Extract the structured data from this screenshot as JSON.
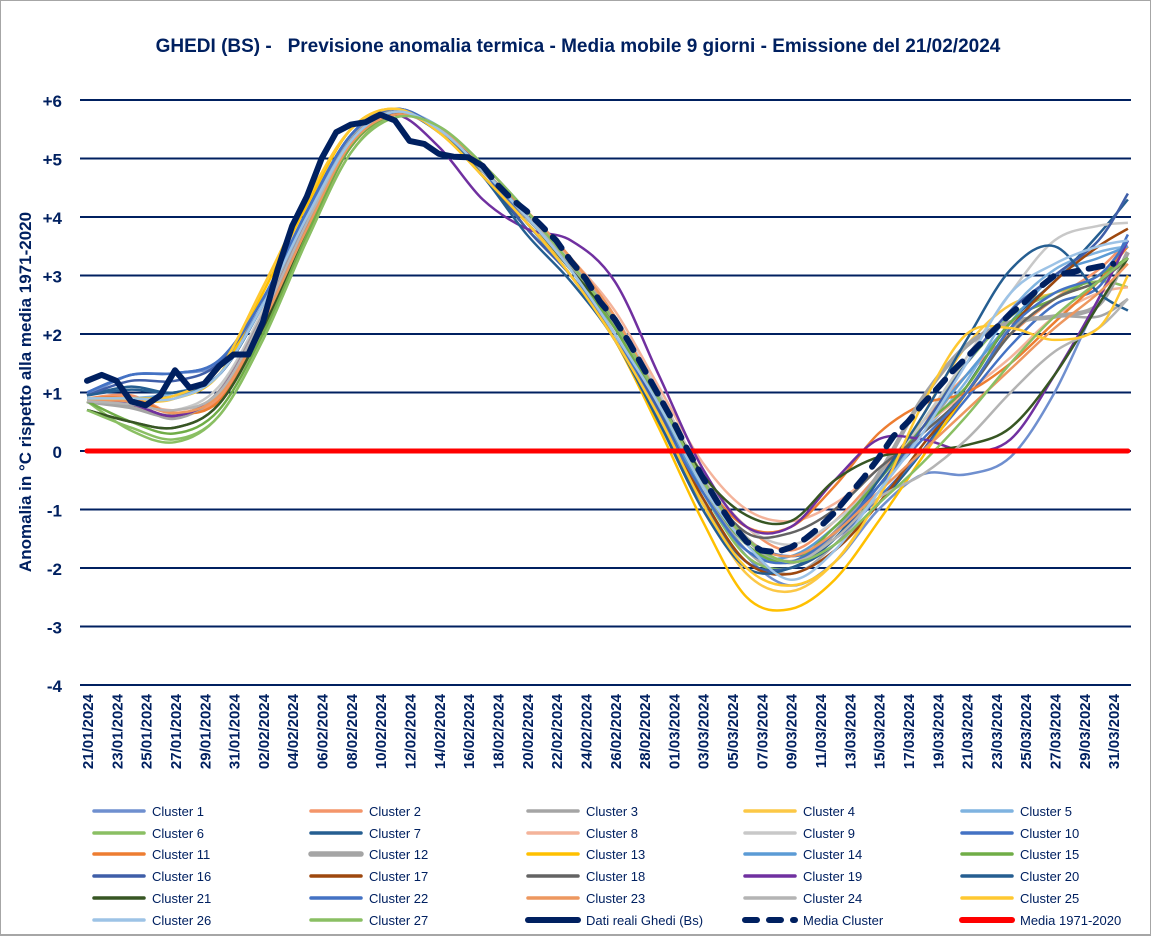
{
  "chart_data": {
    "type": "line",
    "title": "GHEDI (BS) -   Previsione anomalia termica - Media mobile 9 giorni - Emissione del 21/02/2024",
    "xlabel": "",
    "ylabel": "Anomalia in °C rispetto alla media 1971-2020",
    "ylim": [
      -4,
      6
    ],
    "y_ticks": [
      {
        "value": 6,
        "label": "+6"
      },
      {
        "value": 5,
        "label": "+5"
      },
      {
        "value": 4,
        "label": "+4"
      },
      {
        "value": 3,
        "label": "+3"
      },
      {
        "value": 2,
        "label": "+2"
      },
      {
        "value": 1,
        "label": "+1"
      },
      {
        "value": 0,
        "label": "0"
      },
      {
        "value": -1,
        "label": "-1"
      },
      {
        "value": -2,
        "label": "-2"
      },
      {
        "value": -3,
        "label": "-3"
      },
      {
        "value": -4,
        "label": "-4"
      }
    ],
    "x_unit": "days since 21/01/2024",
    "xlim": [
      0,
      71
    ],
    "x_ticks": [
      "21/01/2024",
      "23/01/2024",
      "25/01/2024",
      "27/01/2024",
      "29/01/2024",
      "31/01/2024",
      "02/02/2024",
      "04/02/2024",
      "06/02/2024",
      "08/02/2024",
      "10/02/2024",
      "12/02/2024",
      "14/02/2024",
      "16/02/2024",
      "18/02/2024",
      "20/02/2024",
      "22/02/2024",
      "24/02/2024",
      "26/02/2024",
      "28/02/2024",
      "01/03/2024",
      "03/03/2024",
      "05/03/2024",
      "07/03/2024",
      "09/03/2024",
      "11/03/2024",
      "13/03/2024",
      "15/03/2024",
      "17/03/2024",
      "19/03/2024",
      "21/03/2024",
      "23/03/2024",
      "25/03/2024",
      "27/03/2024",
      "29/03/2024",
      "31/03/2024"
    ],
    "grid": true,
    "legend_position": "bottom",
    "cluster_x": [
      0,
      3,
      6,
      9,
      12,
      15,
      18,
      21,
      24,
      27,
      30,
      33,
      36,
      39,
      42,
      45,
      48,
      51,
      54,
      57,
      60,
      63,
      66,
      69,
      71
    ],
    "series": [
      {
        "name": "Cluster 1",
        "color": "#6f8fcf",
        "width": 2.5,
        "values": [
          0.95,
          1.3,
          1.33,
          1.5,
          2.5,
          4.0,
          5.4,
          5.85,
          5.5,
          4.7,
          3.9,
          3.1,
          2.1,
          0.8,
          -0.7,
          -1.8,
          -2.3,
          -1.9,
          -1.0,
          -0.4,
          -0.4,
          -0.1,
          1.0,
          2.6,
          3.6
        ]
      },
      {
        "name": "Cluster 2",
        "color": "#f4956a",
        "width": 2.5,
        "values": [
          0.9,
          0.95,
          0.65,
          0.9,
          2.2,
          3.8,
          5.2,
          5.75,
          5.5,
          4.8,
          4.1,
          3.3,
          2.3,
          1.0,
          -0.4,
          -1.3,
          -1.7,
          -1.2,
          -0.4,
          0.5,
          1.3,
          2.0,
          2.6,
          3.1,
          3.6
        ]
      },
      {
        "name": "Cluster 3",
        "color": "#a5a5a5",
        "width": 2.5,
        "values": [
          0.85,
          0.8,
          0.55,
          1.0,
          2.3,
          3.9,
          5.3,
          5.8,
          5.5,
          4.8,
          4.0,
          3.2,
          2.1,
          0.8,
          -0.6,
          -1.7,
          -2.1,
          -1.6,
          -0.7,
          0.3,
          1.3,
          2.1,
          2.3,
          2.3,
          2.6
        ]
      },
      {
        "name": "Cluster 4",
        "color": "#fcc846",
        "width": 2.5,
        "values": [
          0.9,
          0.85,
          0.9,
          1.4,
          2.8,
          4.3,
          5.5,
          5.85,
          5.45,
          4.7,
          3.9,
          3.1,
          2.0,
          0.6,
          -0.9,
          -2.1,
          -2.4,
          -1.9,
          -0.8,
          0.6,
          1.8,
          2.5,
          2.7,
          3.0,
          3.5
        ]
      },
      {
        "name": "Cluster 5",
        "color": "#7fb3e0",
        "width": 2.5,
        "values": [
          0.9,
          0.9,
          1.0,
          1.3,
          2.5,
          4.0,
          5.3,
          5.8,
          5.55,
          4.9,
          4.1,
          3.2,
          2.2,
          0.9,
          -0.5,
          -1.6,
          -1.9,
          -1.4,
          -0.6,
          0.3,
          1.2,
          2.4,
          3.1,
          3.4,
          3.5
        ]
      },
      {
        "name": "Cluster 6",
        "color": "#8abf63",
        "width": 2.5,
        "values": [
          0.85,
          0.35,
          0.15,
          0.6,
          1.9,
          3.6,
          5.1,
          5.75,
          5.5,
          4.8,
          4.0,
          3.1,
          2.0,
          0.7,
          -0.7,
          -1.8,
          -2.0,
          -1.5,
          -0.7,
          0.5,
          1.5,
          2.3,
          2.7,
          2.9,
          2.8
        ]
      },
      {
        "name": "Cluster 7",
        "color": "#255e91",
        "width": 2.5,
        "values": [
          0.95,
          1.1,
          1.0,
          1.3,
          2.5,
          4.1,
          5.4,
          5.8,
          5.45,
          4.7,
          3.8,
          3.0,
          1.9,
          0.5,
          -0.9,
          -1.9,
          -2.0,
          -1.6,
          -0.9,
          0.0,
          1.1,
          2.2,
          2.9,
          3.7,
          4.3
        ]
      },
      {
        "name": "Cluster 8",
        "color": "#f4b39a",
        "width": 2.5,
        "values": [
          0.9,
          0.85,
          0.7,
          1.0,
          2.3,
          3.9,
          5.3,
          5.8,
          5.5,
          4.8,
          4.1,
          3.3,
          2.4,
          1.1,
          -0.2,
          -1.0,
          -1.2,
          -0.9,
          -0.3,
          0.4,
          1.0,
          1.6,
          2.3,
          2.7,
          2.8
        ]
      },
      {
        "name": "Cluster 9",
        "color": "#c8c8c8",
        "width": 2.5,
        "values": [
          0.85,
          0.8,
          0.7,
          1.1,
          2.4,
          4.0,
          5.35,
          5.8,
          5.5,
          4.8,
          4.0,
          3.2,
          2.3,
          1.0,
          -0.4,
          -1.3,
          -1.6,
          -1.2,
          -0.5,
          0.5,
          1.6,
          2.7,
          3.6,
          3.85,
          3.9
        ]
      },
      {
        "name": "Cluster 10",
        "color": "#4472c4",
        "width": 2.5,
        "values": [
          1.0,
          1.3,
          1.33,
          1.55,
          2.6,
          4.1,
          5.4,
          5.85,
          5.5,
          4.8,
          3.9,
          3.0,
          2.0,
          0.7,
          -0.6,
          -1.5,
          -1.8,
          -1.5,
          -0.8,
          0.0,
          0.9,
          1.8,
          2.5,
          2.8,
          3.7
        ]
      },
      {
        "name": "Cluster 11",
        "color": "#ed7d31",
        "width": 2.5,
        "values": [
          0.9,
          0.9,
          0.65,
          0.85,
          2.1,
          3.7,
          5.2,
          5.75,
          5.5,
          4.8,
          4.1,
          3.3,
          2.3,
          0.9,
          -0.5,
          -1.3,
          -1.3,
          -0.6,
          0.3,
          0.8,
          1.0,
          1.5,
          2.2,
          2.9,
          3.5
        ]
      },
      {
        "name": "Cluster 12",
        "color": "#a5a5a5",
        "width": 4.5,
        "values": [
          0.85,
          0.75,
          0.6,
          1.0,
          2.3,
          3.9,
          5.3,
          5.8,
          5.5,
          4.8,
          4.0,
          3.2,
          2.2,
          0.9,
          -0.5,
          -1.5,
          -1.9,
          -1.4,
          -0.4,
          0.9,
          1.8,
          2.2,
          2.3,
          2.5,
          3.4
        ]
      },
      {
        "name": "Cluster 13",
        "color": "#ffc000",
        "width": 2.5,
        "values": [
          0.9,
          0.9,
          0.9,
          1.3,
          2.7,
          4.2,
          5.5,
          5.85,
          5.45,
          4.7,
          3.9,
          3.0,
          1.9,
          0.4,
          -1.2,
          -2.5,
          -2.7,
          -2.2,
          -1.2,
          -0.1,
          1.0,
          2.0,
          2.6,
          2.9,
          3.3
        ]
      },
      {
        "name": "Cluster 14",
        "color": "#5b9bd5",
        "width": 2.5,
        "values": [
          0.9,
          0.9,
          0.95,
          1.3,
          2.5,
          4.0,
          5.3,
          5.8,
          5.5,
          4.8,
          4.0,
          3.1,
          2.0,
          0.7,
          -0.7,
          -1.7,
          -1.8,
          -1.3,
          -0.5,
          0.4,
          1.3,
          2.2,
          3.0,
          3.3,
          3.5
        ]
      },
      {
        "name": "Cluster 15",
        "color": "#70ad47",
        "width": 2.5,
        "values": [
          0.85,
          0.5,
          0.3,
          0.7,
          2.0,
          3.7,
          5.2,
          5.75,
          5.5,
          4.8,
          4.0,
          3.1,
          2.1,
          0.8,
          -0.6,
          -1.6,
          -1.9,
          -1.3,
          -0.5,
          0.4,
          1.1,
          2.2,
          2.6,
          3.0,
          3.3
        ]
      },
      {
        "name": "Cluster 16",
        "color": "#3f5ea8",
        "width": 2.5,
        "values": [
          0.95,
          1.2,
          1.2,
          1.5,
          2.6,
          4.1,
          5.4,
          5.85,
          5.5,
          4.8,
          3.8,
          3.0,
          2.0,
          0.7,
          -0.8,
          -1.9,
          -2.0,
          -1.5,
          -0.6,
          0.4,
          1.5,
          2.4,
          3.0,
          3.6,
          4.4
        ]
      },
      {
        "name": "Cluster 17",
        "color": "#9e480e",
        "width": 2.5,
        "values": [
          0.85,
          0.8,
          0.6,
          1.0,
          2.3,
          3.9,
          5.3,
          5.8,
          5.5,
          4.7,
          3.9,
          3.0,
          1.9,
          0.6,
          -0.8,
          -1.9,
          -2.1,
          -1.7,
          -0.9,
          0.1,
          1.0,
          2.1,
          2.9,
          3.5,
          3.8
        ]
      },
      {
        "name": "Cluster 18",
        "color": "#636363",
        "width": 2.5,
        "values": [
          0.7,
          0.5,
          0.4,
          0.8,
          2.1,
          3.8,
          5.3,
          5.75,
          5.5,
          4.8,
          4.0,
          3.1,
          2.2,
          0.9,
          -0.5,
          -1.4,
          -1.4,
          -1.0,
          -0.3,
          0.3,
          1.0,
          2.0,
          2.6,
          2.9,
          3.3
        ]
      },
      {
        "name": "Cluster 19",
        "color": "#7030a0",
        "width": 2.5,
        "values": [
          0.85,
          0.8,
          0.6,
          1.0,
          2.3,
          3.9,
          5.3,
          5.75,
          5.2,
          4.3,
          3.8,
          3.6,
          2.9,
          1.3,
          -0.3,
          -1.3,
          -1.3,
          -0.5,
          0.2,
          0.2,
          0.0,
          0.2,
          1.3,
          2.6,
          3.6
        ]
      },
      {
        "name": "Cluster 20",
        "color": "#255e91",
        "width": 2.5,
        "values": [
          0.95,
          1.05,
          1.0,
          1.3,
          2.5,
          4.0,
          5.3,
          5.8,
          5.5,
          4.7,
          3.7,
          2.9,
          1.9,
          0.5,
          -1.0,
          -2.0,
          -2.0,
          -1.5,
          -0.5,
          0.6,
          1.9,
          3.1,
          3.5,
          2.7,
          2.4
        ]
      },
      {
        "name": "Cluster 21",
        "color": "#375623",
        "width": 2.5,
        "values": [
          0.7,
          0.5,
          0.4,
          0.8,
          2.1,
          3.8,
          5.3,
          5.75,
          5.5,
          4.8,
          4.0,
          3.1,
          2.2,
          0.9,
          -0.4,
          -1.1,
          -1.2,
          -0.5,
          -0.1,
          0.0,
          0.1,
          0.4,
          1.3,
          2.5,
          3.3
        ]
      },
      {
        "name": "Cluster 22",
        "color": "#4472c4",
        "width": 2.5,
        "values": [
          1.0,
          1.3,
          1.33,
          1.55,
          2.6,
          4.1,
          5.4,
          5.85,
          5.5,
          4.8,
          3.9,
          3.0,
          2.0,
          0.6,
          -0.7,
          -1.7,
          -1.9,
          -1.4,
          -0.6,
          0.2,
          1.0,
          2.1,
          2.7,
          3.0,
          3.6
        ]
      },
      {
        "name": "Cluster 23",
        "color": "#ed975f",
        "width": 2.5,
        "values": [
          0.85,
          0.85,
          0.65,
          0.95,
          2.2,
          3.8,
          5.25,
          5.75,
          5.5,
          4.9,
          4.1,
          3.3,
          2.3,
          0.9,
          -0.5,
          -1.5,
          -1.8,
          -1.4,
          -0.7,
          0.0,
          0.7,
          1.4,
          2.1,
          2.7,
          3.2
        ]
      },
      {
        "name": "Cluster 24",
        "color": "#b4b4b4",
        "width": 2.5,
        "values": [
          0.85,
          0.8,
          0.7,
          1.0,
          2.3,
          3.9,
          5.3,
          5.8,
          5.5,
          4.8,
          4.0,
          3.2,
          2.2,
          0.9,
          -0.5,
          -1.5,
          -1.9,
          -1.5,
          -0.8,
          -0.4,
          0.2,
          1.0,
          1.7,
          2.1,
          2.6
        ]
      },
      {
        "name": "Cluster 25",
        "color": "#ffc830",
        "width": 2.5,
        "values": [
          0.9,
          0.9,
          0.95,
          1.4,
          2.8,
          4.3,
          5.5,
          5.85,
          5.45,
          4.7,
          3.9,
          3.0,
          1.9,
          0.6,
          -0.9,
          -2.0,
          -2.3,
          -1.9,
          -0.8,
          0.8,
          2.0,
          2.1,
          1.9,
          2.1,
          3.0
        ]
      },
      {
        "name": "Cluster 26",
        "color": "#9dc3e6",
        "width": 2.5,
        "values": [
          0.9,
          0.9,
          0.9,
          1.3,
          2.5,
          4.0,
          5.3,
          5.8,
          5.5,
          4.8,
          4.0,
          3.1,
          2.0,
          0.8,
          -0.6,
          -1.6,
          -2.2,
          -1.7,
          -0.7,
          0.3,
          1.5,
          2.7,
          3.2,
          3.5,
          3.6
        ]
      },
      {
        "name": "Cluster 27",
        "color": "#8abf63",
        "width": 2.5,
        "values": [
          0.7,
          0.4,
          0.2,
          0.6,
          1.9,
          3.6,
          5.1,
          5.7,
          5.55,
          4.9,
          4.1,
          3.2,
          2.2,
          0.9,
          -0.5,
          -1.5,
          -1.9,
          -1.6,
          -0.9,
          -0.2,
          0.6,
          1.5,
          2.3,
          2.9,
          3.3
        ]
      }
    ],
    "observed": {
      "name": "Dati reali Ghedi (Bs)",
      "color": "#002060",
      "x": [
        0,
        1,
        2,
        3,
        4,
        5,
        6,
        7,
        8,
        9,
        10,
        11,
        12,
        13,
        14,
        15,
        16,
        17,
        18,
        19,
        20,
        21,
        22,
        23,
        24,
        25,
        26,
        27
      ],
      "values": [
        1.2,
        1.3,
        1.2,
        0.85,
        0.78,
        0.95,
        1.38,
        1.08,
        1.15,
        1.45,
        1.65,
        1.65,
        2.2,
        3.1,
        3.85,
        4.35,
        5.0,
        5.45,
        5.58,
        5.62,
        5.75,
        5.65,
        5.3,
        5.25,
        5.08,
        5.03,
        5.02,
        4.87
      ]
    },
    "mean": {
      "name": "Media Cluster",
      "color": "#002060",
      "x": [
        27,
        28,
        29,
        30,
        31,
        32,
        33,
        34,
        35,
        36,
        37,
        38,
        39,
        40,
        41,
        42,
        43,
        44,
        45,
        46,
        47,
        48,
        49,
        50,
        51,
        52,
        53,
        54,
        55,
        56,
        57,
        58,
        59,
        60,
        61,
        62,
        63,
        64,
        65,
        66,
        67,
        68,
        69,
        70
      ],
      "values": [
        4.87,
        4.55,
        4.3,
        4.1,
        3.85,
        3.6,
        3.25,
        2.95,
        2.55,
        2.25,
        1.85,
        1.4,
        0.95,
        0.5,
        0.0,
        -0.45,
        -0.87,
        -1.25,
        -1.55,
        -1.7,
        -1.73,
        -1.65,
        -1.5,
        -1.3,
        -1.05,
        -0.75,
        -0.45,
        -0.12,
        0.25,
        0.5,
        0.8,
        1.07,
        1.35,
        1.6,
        1.85,
        2.1,
        2.35,
        2.55,
        2.8,
        3.0,
        3.05,
        3.1,
        3.15,
        3.2
      ]
    },
    "climatology": {
      "name": "Media 1971-2020",
      "color": "#ff0000",
      "value": 0
    }
  }
}
